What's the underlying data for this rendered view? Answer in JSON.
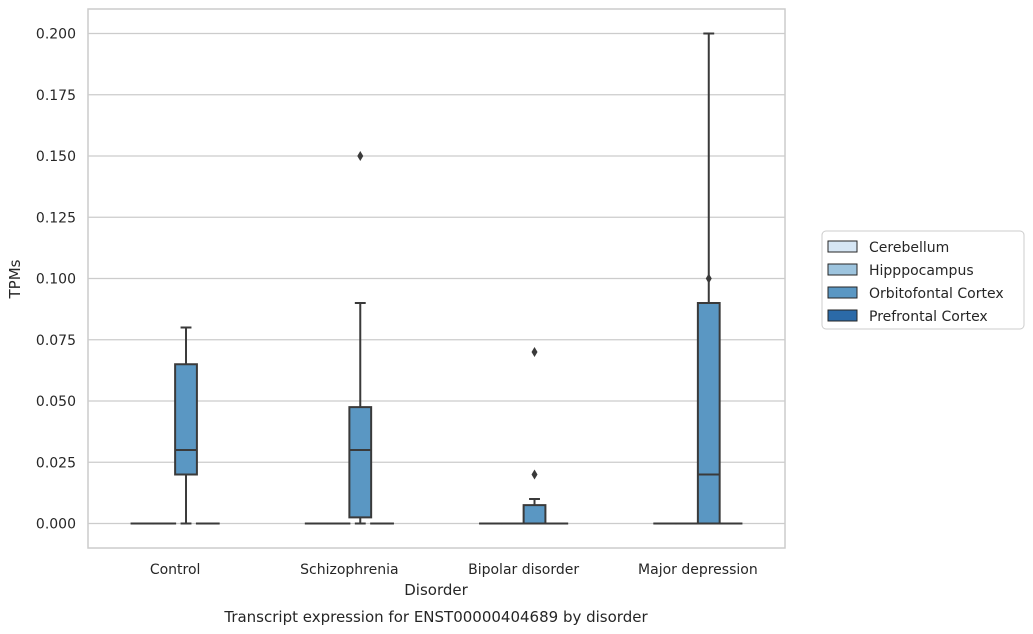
{
  "chart_data": {
    "type": "box",
    "categories": [
      "Control",
      "Schizophrenia",
      "Bipolar disorder",
      "Major depression"
    ],
    "xlabel": "Disorder",
    "ylabel": "TPMs",
    "caption": "Transcript expression for ENST00000404689 by disorder",
    "ylim": [
      -0.01,
      0.21
    ],
    "yticks": [
      "0.000",
      "0.025",
      "0.050",
      "0.075",
      "0.100",
      "0.125",
      "0.150",
      "0.175",
      "0.200"
    ],
    "ytick_values": [
      0,
      0.025,
      0.05,
      0.075,
      0.1,
      0.125,
      0.15,
      0.175,
      0.2
    ],
    "grid": true,
    "legend_position": "right",
    "series": [
      {
        "name": "Cerebellum",
        "color": "#d6e6f4",
        "boxes": [
          {
            "category": "Control",
            "q1": 0,
            "median": 0,
            "q3": 0,
            "whisker_low": 0,
            "whisker_high": 0,
            "outliers": []
          },
          {
            "category": "Schizophrenia",
            "q1": 0,
            "median": 0,
            "q3": 0,
            "whisker_low": 0,
            "whisker_high": 0,
            "outliers": []
          },
          {
            "category": "Bipolar disorder",
            "q1": 0,
            "median": 0,
            "q3": 0,
            "whisker_low": 0,
            "whisker_high": 0,
            "outliers": []
          },
          {
            "category": "Major depression",
            "q1": 0,
            "median": 0,
            "q3": 0,
            "whisker_low": 0,
            "whisker_high": 0,
            "outliers": []
          }
        ]
      },
      {
        "name": "Hipppocampus",
        "color": "#9dc4de",
        "boxes": [
          {
            "category": "Control",
            "q1": 0,
            "median": 0,
            "q3": 0,
            "whisker_low": 0,
            "whisker_high": 0,
            "outliers": []
          },
          {
            "category": "Schizophrenia",
            "q1": 0,
            "median": 0,
            "q3": 0,
            "whisker_low": 0,
            "whisker_high": 0,
            "outliers": []
          },
          {
            "category": "Bipolar disorder",
            "q1": 0,
            "median": 0,
            "q3": 0,
            "whisker_low": 0,
            "whisker_high": 0,
            "outliers": []
          },
          {
            "category": "Major depression",
            "q1": 0,
            "median": 0,
            "q3": 0,
            "whisker_low": 0,
            "whisker_high": 0,
            "outliers": []
          }
        ]
      },
      {
        "name": "Orbitofontal Cortex",
        "color": "#5a97c3",
        "boxes": [
          {
            "category": "Control",
            "q1": 0.02,
            "median": 0.03,
            "q3": 0.065,
            "whisker_low": 0,
            "whisker_high": 0.08,
            "outliers": []
          },
          {
            "category": "Schizophrenia",
            "q1": 0.0025,
            "median": 0.03,
            "q3": 0.0475,
            "whisker_low": 0,
            "whisker_high": 0.09,
            "outliers": [
              0.15
            ]
          },
          {
            "category": "Bipolar disorder",
            "q1": 0,
            "median": 0,
            "q3": 0.0075,
            "whisker_low": 0,
            "whisker_high": 0.01,
            "outliers": [
              0.02,
              0.07
            ]
          },
          {
            "category": "Major depression",
            "q1": 0,
            "median": 0.02,
            "q3": 0.09,
            "whisker_low": 0,
            "whisker_high": 0.2,
            "outliers": [
              0.1
            ]
          }
        ]
      },
      {
        "name": "Prefrontal Cortex",
        "color": "#2b6aa8",
        "boxes": [
          {
            "category": "Control",
            "q1": 0,
            "median": 0,
            "q3": 0,
            "whisker_low": 0,
            "whisker_high": 0,
            "outliers": []
          },
          {
            "category": "Schizophrenia",
            "q1": 0,
            "median": 0,
            "q3": 0,
            "whisker_low": 0,
            "whisker_high": 0,
            "outliers": []
          },
          {
            "category": "Bipolar disorder",
            "q1": 0,
            "median": 0,
            "q3": 0,
            "whisker_low": 0,
            "whisker_high": 0,
            "outliers": []
          },
          {
            "category": "Major depression",
            "q1": 0,
            "median": 0,
            "q3": 0,
            "whisker_low": 0,
            "whisker_high": 0,
            "outliers": []
          }
        ]
      }
    ]
  }
}
